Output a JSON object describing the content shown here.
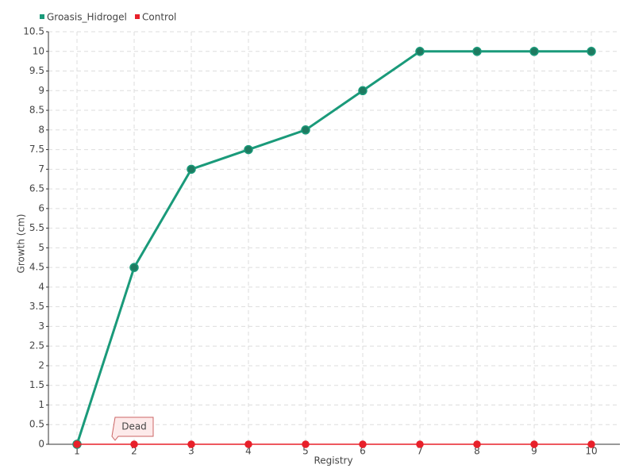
{
  "chart_data": {
    "type": "line",
    "categories": [
      "1",
      "2",
      "3",
      "4",
      "5",
      "6",
      "7",
      "8",
      "9",
      "10"
    ],
    "series": [
      {
        "name": "Groasis_Hidrogel",
        "color": "#1a9a7a",
        "values": [
          0,
          4.5,
          7,
          7.5,
          8,
          9,
          10,
          10,
          10,
          10
        ]
      },
      {
        "name": "Control",
        "color": "#e8202a",
        "values": [
          0,
          0,
          0,
          0,
          0,
          0,
          0,
          0,
          0,
          0
        ]
      }
    ],
    "xlabel": "Registry",
    "ylabel": "Growth (cm)",
    "ylim": [
      0,
      10.5
    ],
    "yticks": [
      0,
      0.5,
      1,
      1.5,
      2,
      2.5,
      3,
      3.5,
      4,
      4.5,
      5,
      5.5,
      6,
      6.5,
      7,
      7.5,
      8,
      8.5,
      9,
      9.5,
      10,
      10.5
    ],
    "grid": true,
    "legend": "top-left",
    "annotations": [
      {
        "text": "Dead",
        "series": "Control",
        "category": "2"
      }
    ]
  }
}
